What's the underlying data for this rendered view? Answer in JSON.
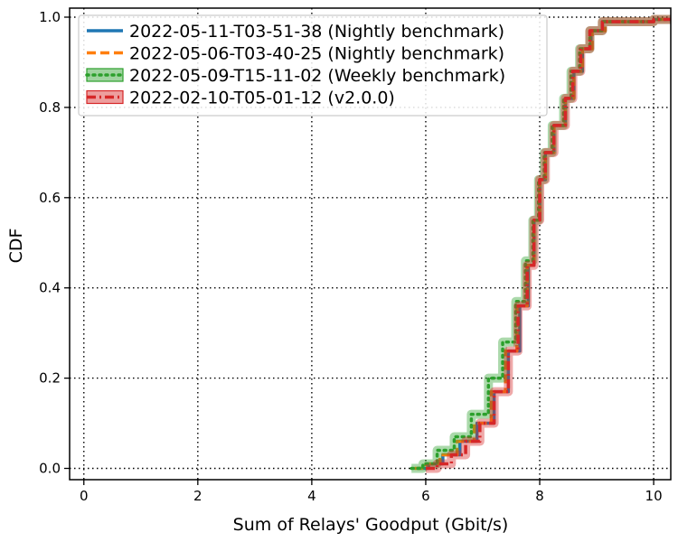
{
  "chart_data": {
    "type": "line",
    "title": "",
    "xlabel": "Sum of Relays' Goodput (Gbit/s)",
    "ylabel": "CDF",
    "xlim": [
      -0.25,
      10.3
    ],
    "ylim": [
      -0.025,
      1.02
    ],
    "xticks": [
      0,
      2,
      4,
      6,
      8,
      10
    ],
    "yticks": [
      0.0,
      0.2,
      0.4,
      0.6,
      0.8,
      1.0
    ],
    "xtick_labels": [
      "0",
      "2",
      "4",
      "6",
      "8",
      "10"
    ],
    "ytick_labels": [
      "0.0",
      "0.2",
      "0.4",
      "0.6",
      "0.8",
      "1.0"
    ],
    "grid": true,
    "legend_position": "top-left",
    "series": [
      {
        "name": "2022-05-11-T03-51-38 (Nightly benchmark)",
        "color": "#1f77b4",
        "style": "solid",
        "band": false,
        "x": [
          5.85,
          6.05,
          6.3,
          6.6,
          6.9,
          7.2,
          7.45,
          7.65,
          7.8,
          7.9,
          8.0,
          8.1,
          8.25,
          8.45,
          8.6,
          8.75,
          8.9,
          9.1,
          9.4,
          10.0,
          10.3
        ],
        "y": [
          0.0,
          0.01,
          0.03,
          0.06,
          0.1,
          0.17,
          0.26,
          0.36,
          0.45,
          0.55,
          0.64,
          0.7,
          0.76,
          0.82,
          0.88,
          0.93,
          0.97,
          0.99,
          0.99,
          0.995,
          0.995
        ]
      },
      {
        "name": "2022-05-06-T03-40-25 (Nightly benchmark)",
        "color": "#ff7f0e",
        "style": "dashed",
        "band": false,
        "x": [
          5.8,
          6.0,
          6.25,
          6.55,
          6.85,
          7.15,
          7.4,
          7.6,
          7.78,
          7.9,
          8.0,
          8.1,
          8.25,
          8.45,
          8.6,
          8.75,
          8.92,
          9.15,
          9.5,
          10.0,
          10.3
        ],
        "y": [
          0.0,
          0.01,
          0.03,
          0.06,
          0.1,
          0.17,
          0.26,
          0.36,
          0.45,
          0.55,
          0.64,
          0.7,
          0.76,
          0.82,
          0.88,
          0.93,
          0.97,
          0.99,
          0.99,
          0.995,
          0.995
        ]
      },
      {
        "name": "2022-05-09-T15-11-02 (Weekly benchmark)",
        "color": "#2ca02c",
        "style": "dotted",
        "band": true,
        "x": [
          5.75,
          5.95,
          6.2,
          6.5,
          6.8,
          7.1,
          7.35,
          7.58,
          7.75,
          7.88,
          7.98,
          8.08,
          8.22,
          8.42,
          8.55,
          8.7,
          8.88,
          9.1,
          9.4,
          10.0,
          10.3
        ],
        "y": [
          0.0,
          0.01,
          0.04,
          0.07,
          0.12,
          0.2,
          0.28,
          0.37,
          0.46,
          0.55,
          0.64,
          0.7,
          0.76,
          0.82,
          0.88,
          0.93,
          0.97,
          0.99,
          0.99,
          0.995,
          0.995
        ]
      },
      {
        "name": "2022-02-10-T05-01-12 (v2.0.0)",
        "color": "#d62728",
        "style": "dashdot",
        "band": true,
        "x": [
          6.0,
          6.2,
          6.45,
          6.7,
          6.95,
          7.2,
          7.45,
          7.62,
          7.78,
          7.9,
          8.0,
          8.1,
          8.25,
          8.45,
          8.58,
          8.72,
          8.88,
          9.1,
          9.4,
          10.0,
          10.3
        ],
        "y": [
          0.0,
          0.01,
          0.03,
          0.06,
          0.1,
          0.17,
          0.26,
          0.36,
          0.45,
          0.55,
          0.64,
          0.7,
          0.76,
          0.82,
          0.88,
          0.93,
          0.97,
          0.99,
          0.99,
          0.995,
          0.995
        ]
      }
    ]
  }
}
